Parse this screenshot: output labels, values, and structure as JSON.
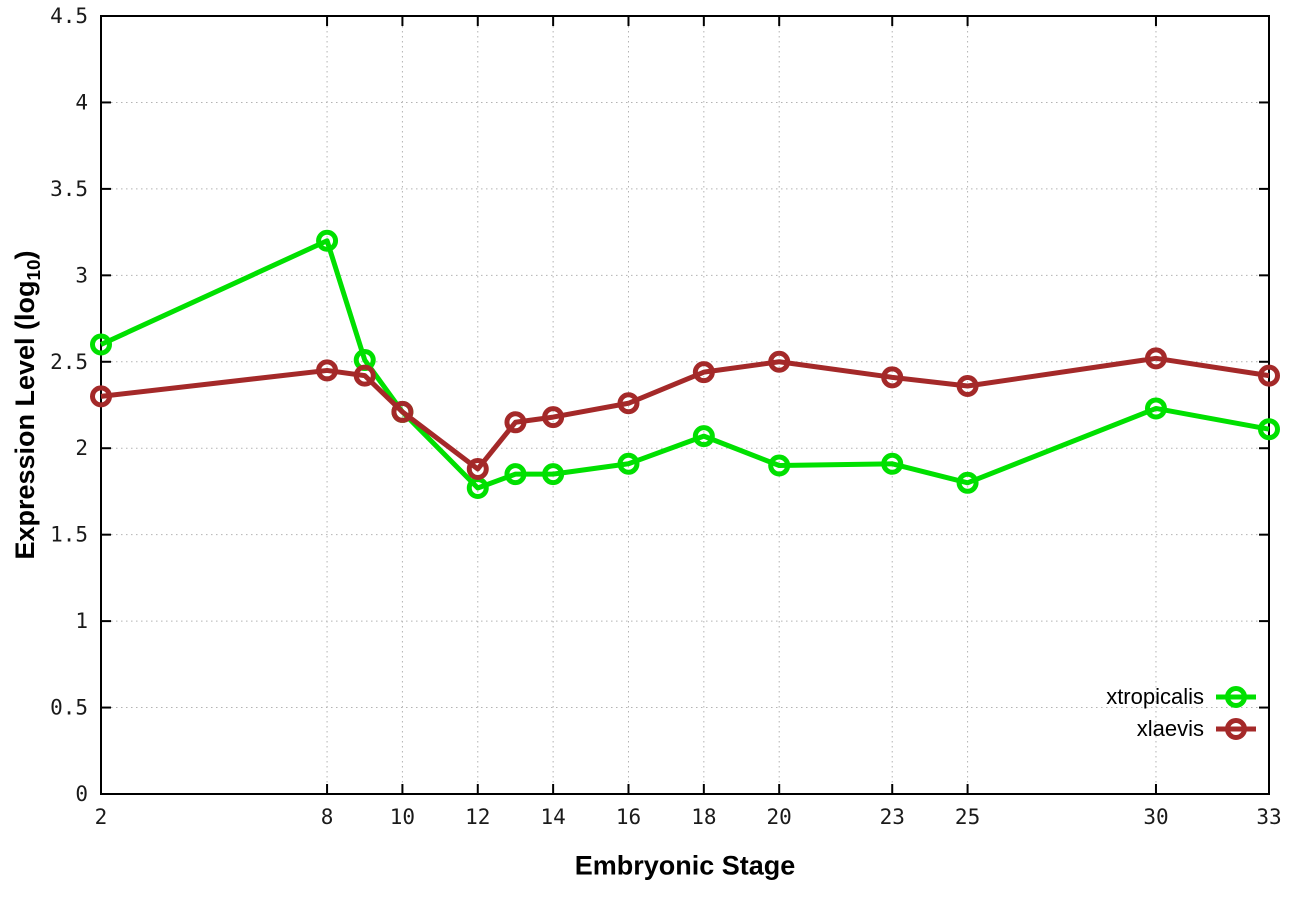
{
  "figure": {
    "background": "#ffffff",
    "xlabel": "Embryonic Stage",
    "ylabel": {
      "pre": "Expression Level (log",
      "sub": "10",
      "post": ")"
    }
  },
  "chart_data": {
    "type": "line",
    "title": "",
    "xlabel": "Embryonic Stage",
    "ylabel": "Expression Level (log10)",
    "xlim": [
      2,
      33
    ],
    "ylim": [
      0,
      4.5
    ],
    "grid": true,
    "grid_style": "dotted",
    "legend_position": "bottom-right-inside",
    "x": [
      2,
      8,
      9,
      10,
      12,
      13,
      14,
      16,
      18,
      20,
      23,
      25,
      30,
      33
    ],
    "xtick_labels": [
      "2",
      "8",
      "10",
      "12",
      "14",
      "16",
      "18",
      "20",
      "23",
      "25",
      "30",
      "33"
    ],
    "ytick_labels": [
      "0",
      "0.5",
      "1",
      "1.5",
      "2",
      "2.5",
      "3",
      "3.5",
      "4",
      "4.5"
    ],
    "series": [
      {
        "name": "xtropicalis",
        "color": "#00e000",
        "marker": "open-circle",
        "values": [
          2.6,
          3.2,
          2.51,
          2.21,
          1.77,
          1.85,
          1.85,
          1.91,
          2.07,
          1.9,
          1.91,
          1.8,
          2.23,
          2.11
        ]
      },
      {
        "name": "xlaevis",
        "color": "#a42929",
        "marker": "open-circle",
        "values": [
          2.3,
          2.45,
          2.42,
          2.21,
          1.88,
          2.15,
          2.18,
          2.26,
          2.44,
          2.5,
          2.41,
          2.36,
          2.52,
          2.42
        ]
      }
    ],
    "colors": {
      "grid": "#b3b3b3",
      "frame": "#000000",
      "tick_text": "#1a1a1a"
    }
  }
}
